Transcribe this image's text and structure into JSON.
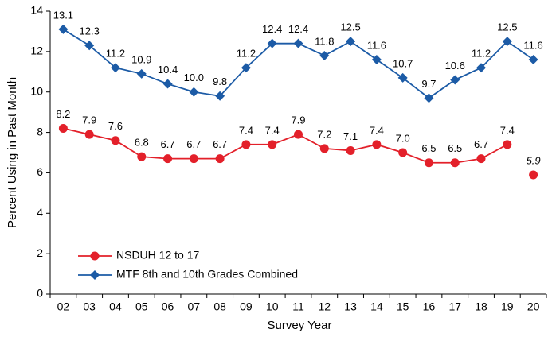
{
  "chart_data": {
    "type": "line",
    "xlabel": "Survey Year",
    "ylabel": "Percent Using in Past Month",
    "categories": [
      "02",
      "03",
      "04",
      "05",
      "06",
      "07",
      "08",
      "09",
      "10",
      "11",
      "12",
      "13",
      "14",
      "15",
      "16",
      "17",
      "18",
      "19",
      "20"
    ],
    "ylim": [
      0,
      14
    ],
    "yticks": [
      0,
      2,
      4,
      6,
      8,
      10,
      12,
      14
    ],
    "legend": "lower left",
    "series": [
      {
        "name": "NSDUH 12 to 17",
        "color": "#e3202a",
        "marker": "circle",
        "values": [
          8.2,
          7.9,
          7.6,
          6.8,
          6.7,
          6.7,
          6.7,
          7.4,
          7.4,
          7.9,
          7.2,
          7.1,
          7.4,
          7.0,
          6.5,
          6.5,
          6.7,
          7.4,
          null
        ],
        "value_labels": [
          "8.2",
          "7.9",
          "7.6",
          "6.8",
          "6.7",
          "6.7",
          "6.7",
          "7.4",
          "7.4",
          "7.9",
          "7.2",
          "7.1",
          "7.4",
          "7.0",
          "6.5",
          "6.5",
          "6.7",
          "7.4",
          null
        ]
      },
      {
        "name": "MTF 8th and 10th Grades Combined",
        "color": "#1c5ba6",
        "marker": "diamond",
        "values": [
          13.1,
          12.3,
          11.2,
          10.9,
          10.4,
          10.0,
          9.8,
          11.2,
          12.4,
          12.4,
          11.8,
          12.5,
          11.6,
          10.7,
          9.7,
          10.6,
          11.2,
          12.5,
          11.6
        ],
        "value_labels": [
          "13.1",
          "12.3",
          "11.2",
          "10.9",
          "10.4",
          "10.0",
          "9.8",
          "11.2",
          "12.4",
          "12.4",
          "11.8",
          "12.5",
          "11.6",
          "10.7",
          "9.7",
          "10.6",
          "11.2",
          "12.5",
          "11.6"
        ]
      },
      {
        "color": "#e3202a",
        "marker": "circle",
        "label_style": "italic",
        "values": [
          null,
          null,
          null,
          null,
          null,
          null,
          null,
          null,
          null,
          null,
          null,
          null,
          null,
          null,
          null,
          null,
          null,
          null,
          5.9
        ],
        "value_labels": [
          null,
          null,
          null,
          null,
          null,
          null,
          null,
          null,
          null,
          null,
          null,
          null,
          null,
          null,
          null,
          null,
          null,
          null,
          "5.9"
        ]
      }
    ]
  }
}
